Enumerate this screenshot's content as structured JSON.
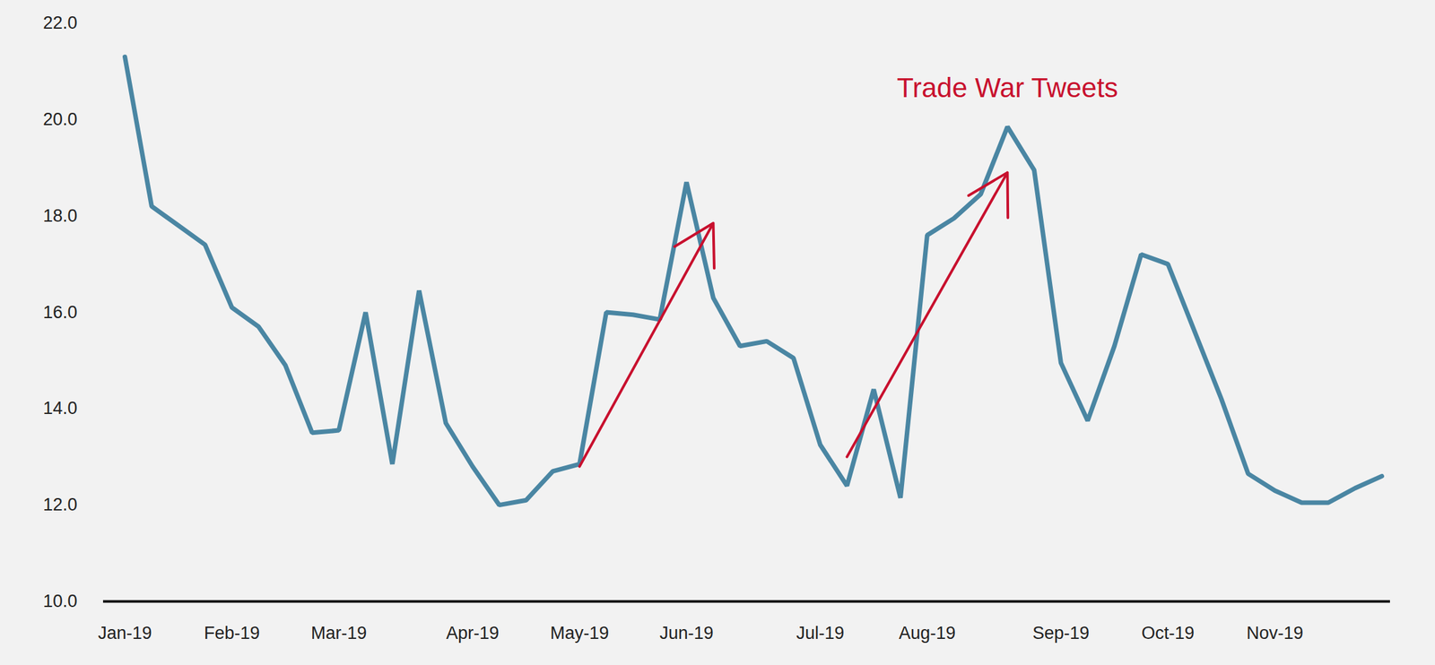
{
  "chart_data": {
    "type": "line",
    "categories": [
      "Jan-19",
      null,
      null,
      null,
      "Feb-19",
      null,
      null,
      null,
      "Mar-19",
      null,
      null,
      null,
      null,
      "Apr-19",
      null,
      null,
      null,
      "May-19",
      null,
      null,
      null,
      "Jun-19",
      null,
      null,
      null,
      null,
      "Jul-19",
      null,
      null,
      null,
      "Aug-19",
      null,
      null,
      null,
      null,
      "Sep-19",
      null,
      null,
      null,
      "Oct-19",
      null,
      null,
      null,
      "Nov-19",
      null,
      null,
      null,
      null
    ],
    "values": [
      21.3,
      18.2,
      17.8,
      17.4,
      16.1,
      15.7,
      14.9,
      13.5,
      13.55,
      16.0,
      12.85,
      16.45,
      13.7,
      12.8,
      12.0,
      12.1,
      12.7,
      12.85,
      16.0,
      15.95,
      15.85,
      18.7,
      16.3,
      15.3,
      15.4,
      15.05,
      13.25,
      12.4,
      14.4,
      12.15,
      17.6,
      17.95,
      18.45,
      19.85,
      18.95,
      14.95,
      13.75,
      15.3,
      17.2,
      17.0,
      15.6,
      14.2,
      12.65,
      12.3,
      12.05,
      12.05,
      12.35,
      12.6
    ],
    "color": "#4a86a3",
    "ylim": [
      10,
      22
    ],
    "yticks": [
      {
        "value": 10,
        "label": "10.0"
      },
      {
        "value": 12,
        "label": "12.0"
      },
      {
        "value": 14,
        "label": "14.0"
      },
      {
        "value": 16,
        "label": "16.0"
      },
      {
        "value": 18,
        "label": "18.0"
      },
      {
        "value": 20,
        "label": "20.0"
      },
      {
        "value": 22,
        "label": "22.0"
      }
    ],
    "grid": false,
    "annotations": [
      {
        "text": "Trade War Tweets",
        "x": 33,
        "y": 20.65,
        "color": "#c8102e"
      }
    ],
    "arrows": [
      {
        "x1": 17,
        "y1": 12.8,
        "x2": 22,
        "y2": 17.85,
        "color": "#c8102e"
      },
      {
        "x1": 27,
        "y1": 13.0,
        "x2": 33,
        "y2": 18.9,
        "color": "#c8102e"
      }
    ]
  }
}
